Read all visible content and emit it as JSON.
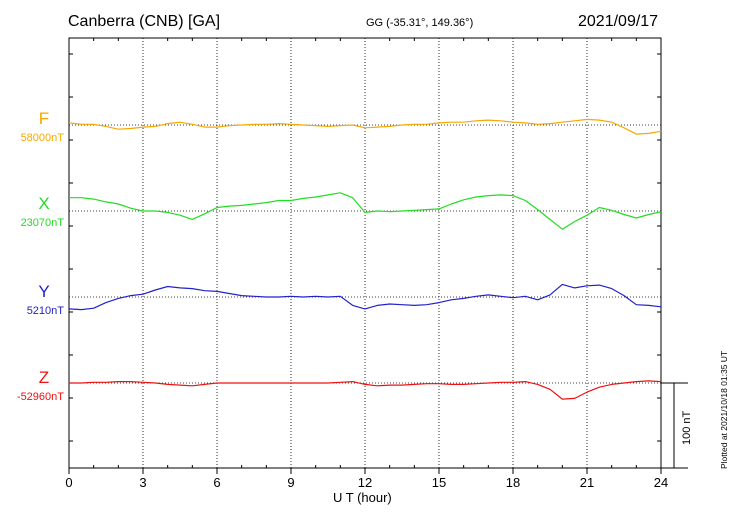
{
  "header": {
    "station": "Canberra (CNB)  [GA]",
    "coords": "GG (-35.31°, 149.36°)",
    "date": "2021/09/17"
  },
  "footer": {
    "plotted": "Plotted at 2021/10/18 01:35 UT"
  },
  "chart_data": {
    "type": "line",
    "xlabel": "U T (hour)",
    "xlim": [
      0,
      24
    ],
    "x_ticks": [
      "0",
      "3",
      "6",
      "9",
      "12",
      "15",
      "18",
      "21",
      "24"
    ],
    "scale_bar": {
      "label": "100 nT",
      "value_nT": 100
    },
    "grid": true,
    "x": [
      0,
      0.5,
      1,
      1.5,
      2,
      2.5,
      3,
      3.5,
      4,
      4.5,
      5,
      5.5,
      6,
      6.5,
      7,
      7.5,
      8,
      8.5,
      9,
      9.5,
      10,
      10.5,
      11,
      11.5,
      12,
      12.5,
      13,
      13.5,
      14,
      14.5,
      15,
      15.5,
      16,
      16.5,
      17,
      17.5,
      18,
      18.5,
      19,
      19.5,
      20,
      20.5,
      21,
      21.5,
      22,
      22.5,
      23,
      23.5,
      24
    ],
    "series": [
      {
        "name": "F",
        "baseline_label": "58000nT",
        "baseline": 58000,
        "color": "#f5a800",
        "values": [
          58003,
          58001,
          58001,
          57998,
          57994,
          57995,
          57997,
          57998,
          58002,
          58004,
          58001,
          57997,
          57997,
          57999,
          58000,
          58001,
          58001,
          58002,
          58001,
          58000,
          57999,
          57998,
          57999,
          58000,
          57996,
          57997,
          57998,
          58000,
          58001,
          58001,
          58003,
          58004,
          58004,
          58006,
          58007,
          58006,
          58004,
          58003,
          58001,
          58002,
          58004,
          58006,
          58008,
          58007,
          58004,
          57996,
          57987,
          57988,
          57991
        ]
      },
      {
        "name": "X",
        "baseline_label": "23070nT",
        "baseline": 23070,
        "color": "#22dd22",
        "values": [
          23089,
          23089,
          23087,
          23083,
          23080,
          23074,
          23070,
          23070,
          23068,
          23064,
          23058,
          23066,
          23075,
          23077,
          23078,
          23080,
          23082,
          23085,
          23085,
          23088,
          23090,
          23093,
          23096,
          23089,
          23068,
          23070,
          23069,
          23070,
          23071,
          23072,
          23073,
          23080,
          23086,
          23090,
          23092,
          23093,
          23092,
          23085,
          23072,
          23058,
          23044,
          23055,
          23064,
          23075,
          23071,
          23065,
          23060,
          23065,
          23069
        ]
      },
      {
        "name": "Y",
        "baseline_label": "5210nT",
        "baseline": 5210,
        "color": "#2222cc",
        "values": [
          5193,
          5192,
          5194,
          5202,
          5208,
          5212,
          5214,
          5220,
          5225,
          5223,
          5222,
          5219,
          5218,
          5215,
          5212,
          5211,
          5210,
          5210,
          5211,
          5210,
          5211,
          5210,
          5211,
          5198,
          5193,
          5198,
          5200,
          5199,
          5198,
          5199,
          5202,
          5206,
          5208,
          5211,
          5213,
          5211,
          5209,
          5211,
          5206,
          5213,
          5228,
          5223,
          5226,
          5227,
          5222,
          5212,
          5199,
          5198,
          5196
        ]
      },
      {
        "name": "Z",
        "baseline_label": "-52960nT",
        "baseline": -52960,
        "color": "#ee1111",
        "values": [
          -52960,
          -52960,
          -52959,
          -52959,
          -52958,
          -52958,
          -52959,
          -52960,
          -52962,
          -52963,
          -52964,
          -52962,
          -52960,
          -52960,
          -52960,
          -52960,
          -52960,
          -52960,
          -52960,
          -52960,
          -52960,
          -52960,
          -52959,
          -52958,
          -52962,
          -52964,
          -52963,
          -52963,
          -52962,
          -52961,
          -52961,
          -52962,
          -52962,
          -52961,
          -52960,
          -52959,
          -52959,
          -52958,
          -52962,
          -52969,
          -52983,
          -52982,
          -52973,
          -52966,
          -52962,
          -52960,
          -52958,
          -52957,
          -52958
        ]
      }
    ]
  }
}
